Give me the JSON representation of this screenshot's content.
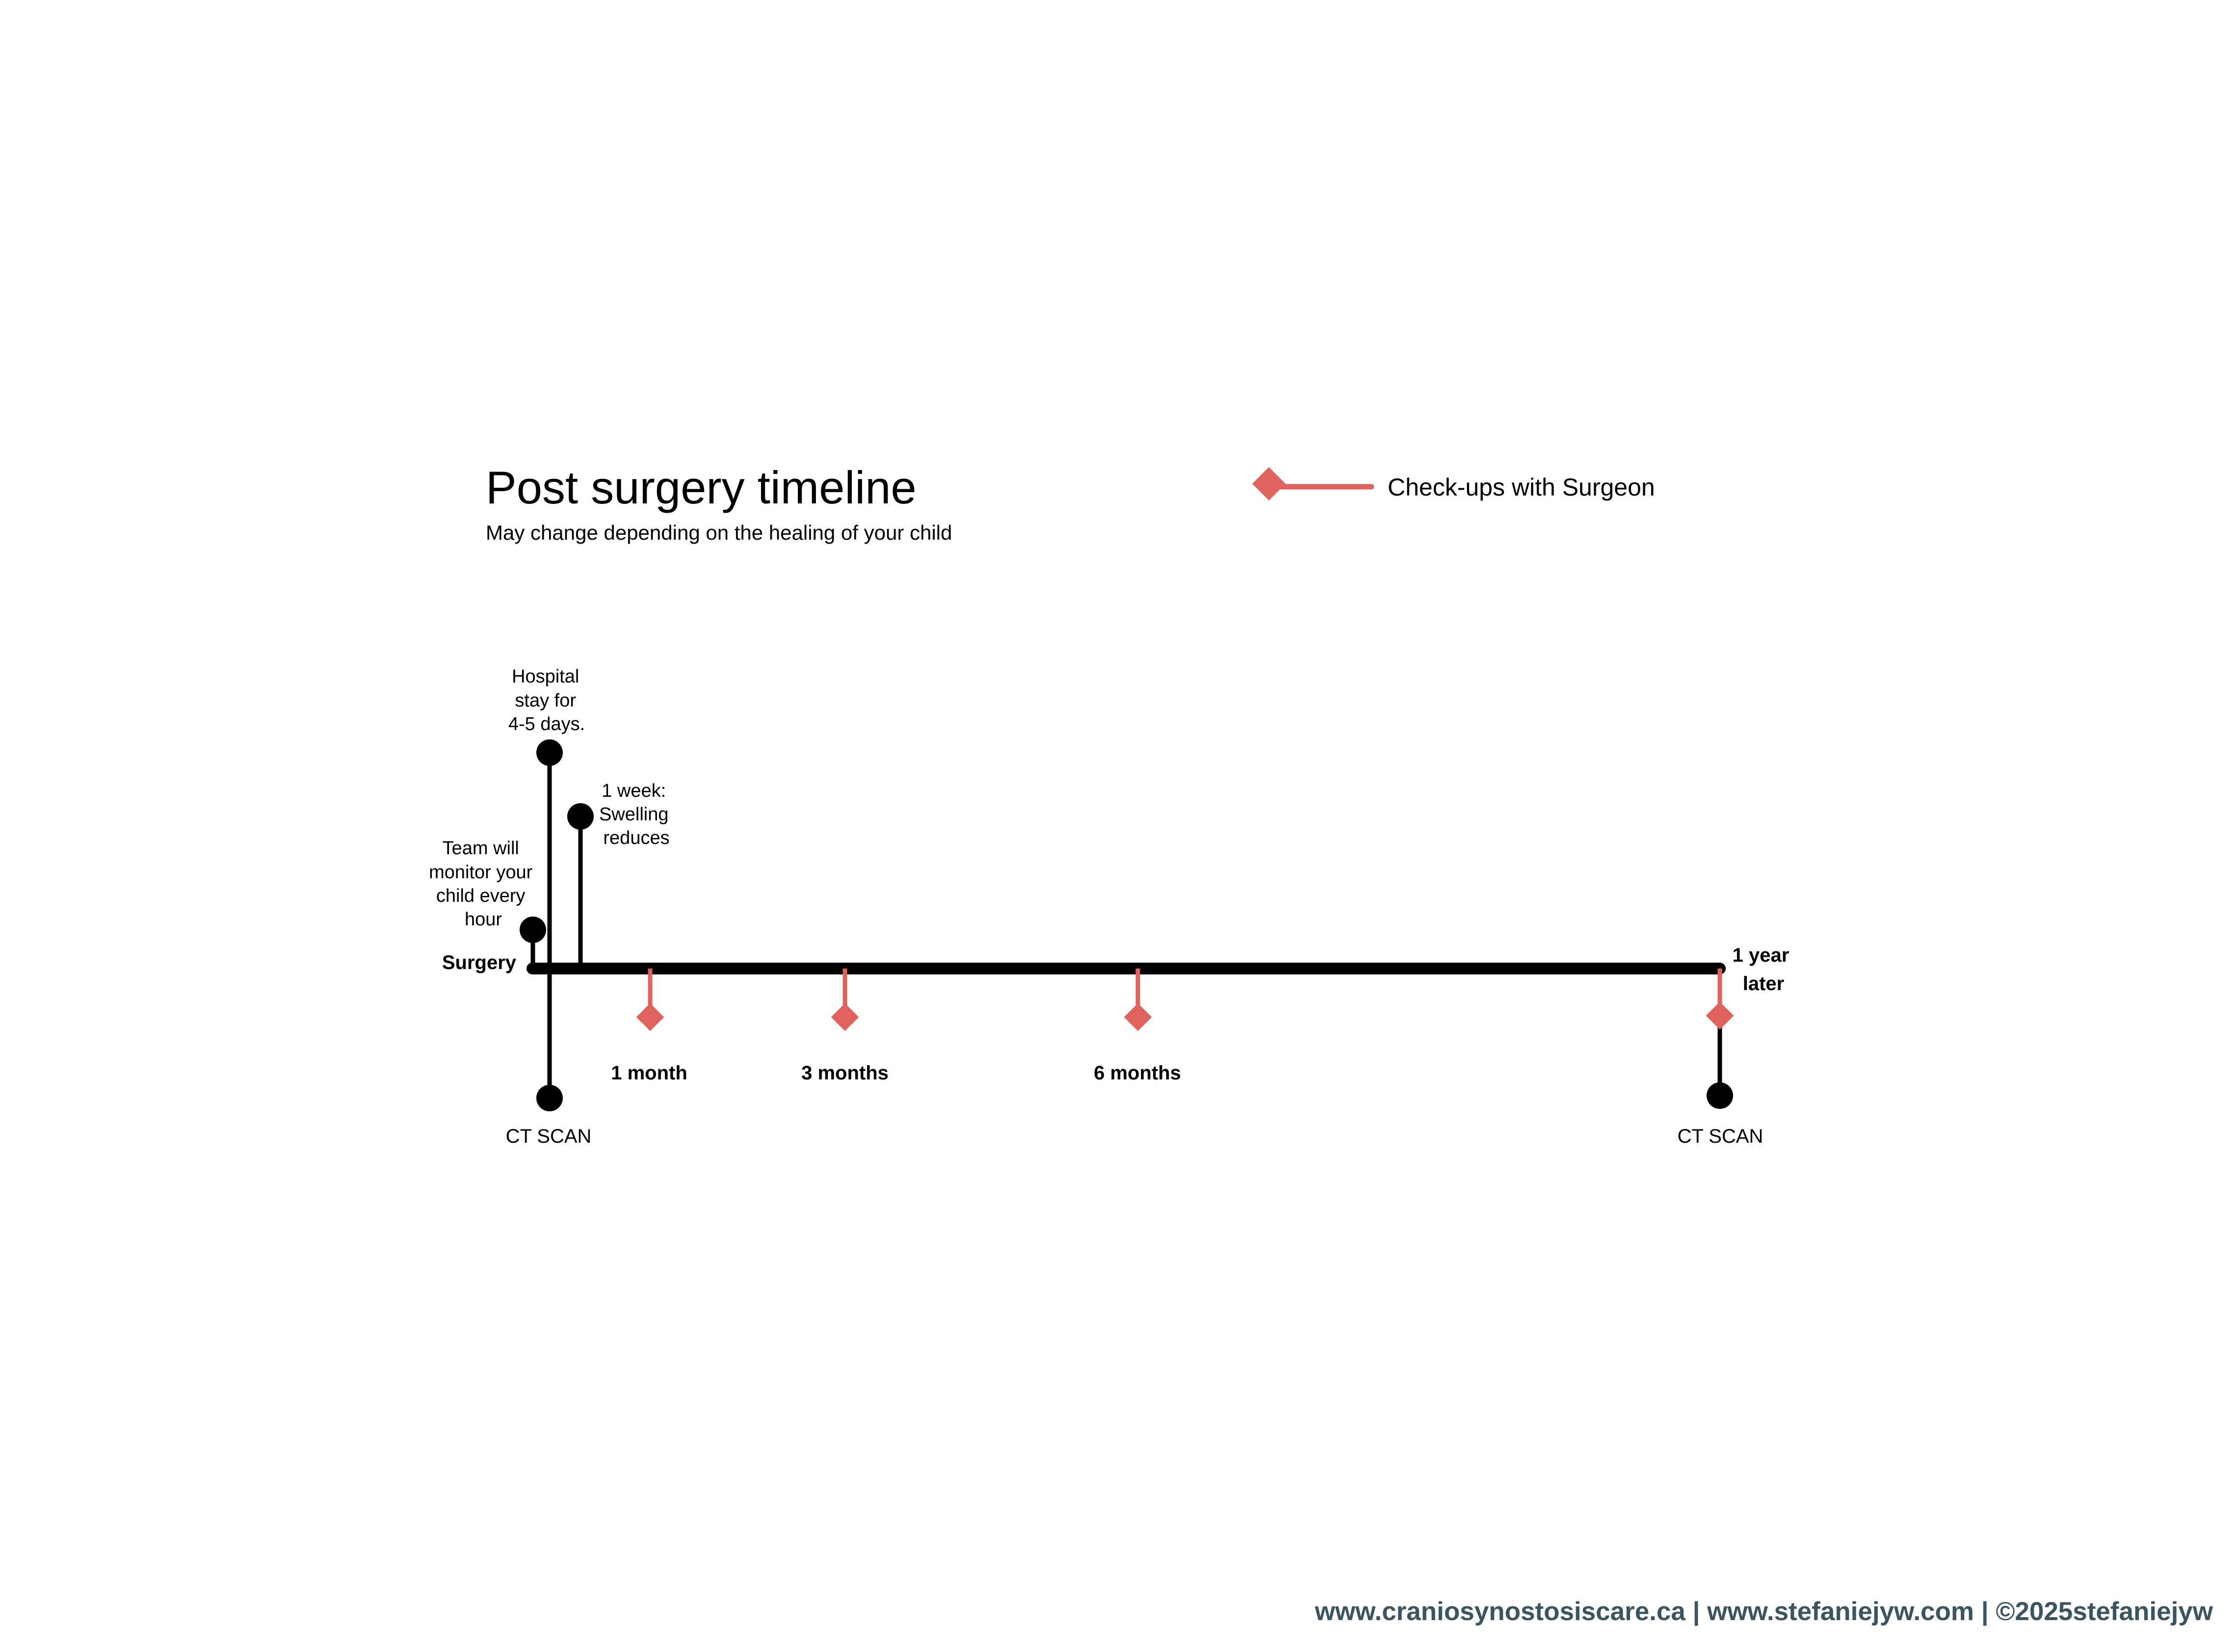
{
  "title": "Post surgery timeline",
  "subtitle": "May change depending on the healing of your child",
  "legend": {
    "label": "Check-ups with Surgeon",
    "color": "#e0625c"
  },
  "colors": {
    "line": "#000000",
    "checkup": "#e0625c",
    "footer": "#3b5560"
  },
  "events": {
    "surgery": "Surgery",
    "hospital_stay": [
      "Hospital",
      "stay for",
      "4-5 days."
    ],
    "team_monitor": [
      "Team will",
      "monitor your",
      "child every",
      "hour"
    ],
    "one_week": [
      "1 week:",
      "Swelling",
      "reduces"
    ],
    "one_year": [
      "1 year",
      "later"
    ],
    "ct_scan_start": "CT SCAN",
    "ct_scan_end": "CT SCAN"
  },
  "checkups": [
    "1 month",
    "3 months",
    "6 months"
  ],
  "footer": "www.craniosynostosiscare.ca | www.stefaniejyw.com | ©2025stefaniejyw"
}
